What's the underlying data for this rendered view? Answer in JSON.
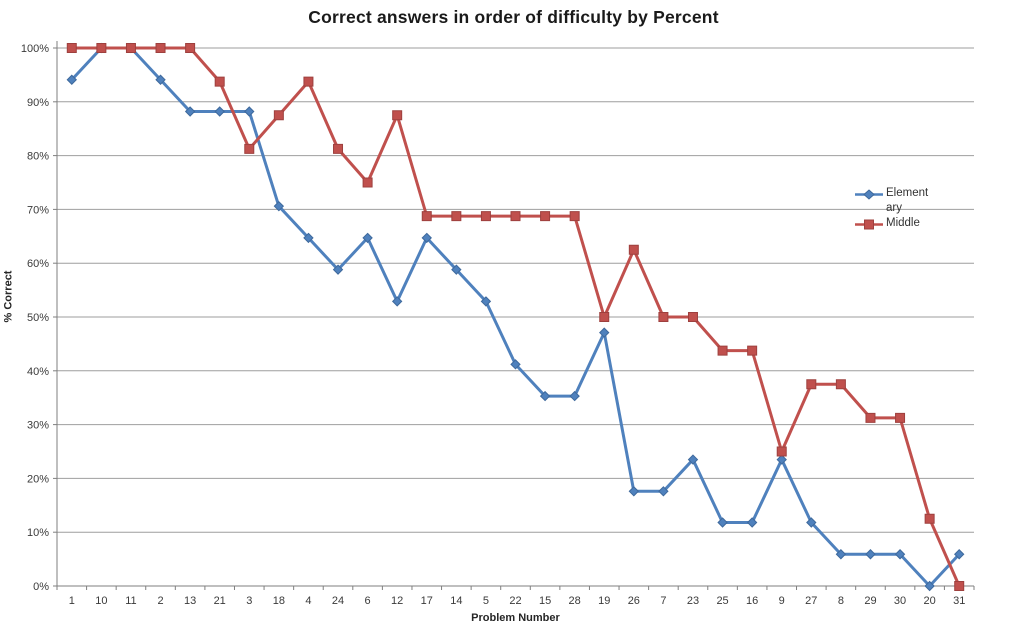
{
  "chart_data": {
    "type": "line",
    "title": "Correct answers in order of difficulty by Percent",
    "xlabel": "Problem Number",
    "ylabel": "% Correct",
    "ylim": [
      0,
      100
    ],
    "y_tick_step": 10,
    "y_tick_labels": [
      "0%",
      "10%",
      "20%",
      "30%",
      "40%",
      "50%",
      "60%",
      "70%",
      "80%",
      "90%",
      "100%"
    ],
    "grid": true,
    "legend_position": "inside-right",
    "categories": [
      "1",
      "10",
      "11",
      "2",
      "13",
      "21",
      "3",
      "18",
      "4",
      "24",
      "6",
      "12",
      "17",
      "14",
      "5",
      "22",
      "15",
      "28",
      "19",
      "26",
      "7",
      "23",
      "25",
      "16",
      "9",
      "27",
      "8",
      "29",
      "30",
      "20",
      "31"
    ],
    "series": [
      {
        "name": "Elementary",
        "color": "#4F81BD",
        "marker": "diamond",
        "marker_edge": "#3E699C",
        "values": [
          94.1,
          100,
          100,
          94.1,
          88.2,
          88.2,
          88.2,
          70.6,
          64.7,
          58.8,
          64.7,
          52.9,
          64.7,
          58.8,
          52.9,
          41.2,
          35.3,
          35.3,
          47.1,
          17.6,
          17.6,
          23.5,
          11.8,
          11.8,
          23.5,
          11.8,
          5.9,
          5.9,
          5.9,
          0,
          5.9
        ]
      },
      {
        "name": "Middle",
        "color": "#C0504D",
        "marker": "square",
        "marker_edge": "#9E403E",
        "values": [
          100,
          100,
          100,
          100,
          100,
          93.75,
          81.25,
          87.5,
          93.75,
          81.25,
          75,
          87.5,
          68.75,
          68.75,
          68.75,
          68.75,
          68.75,
          68.75,
          50,
          62.5,
          50,
          50,
          43.75,
          43.75,
          25,
          37.5,
          37.5,
          31.25,
          31.25,
          12.5,
          0
        ]
      }
    ],
    "colors": {
      "gridline": "#9E9E9E",
      "axis": "#7F7F7F",
      "tick_label": "#3A3A3A",
      "title": "#1A1A1A",
      "background": "#FFFFFF"
    }
  }
}
